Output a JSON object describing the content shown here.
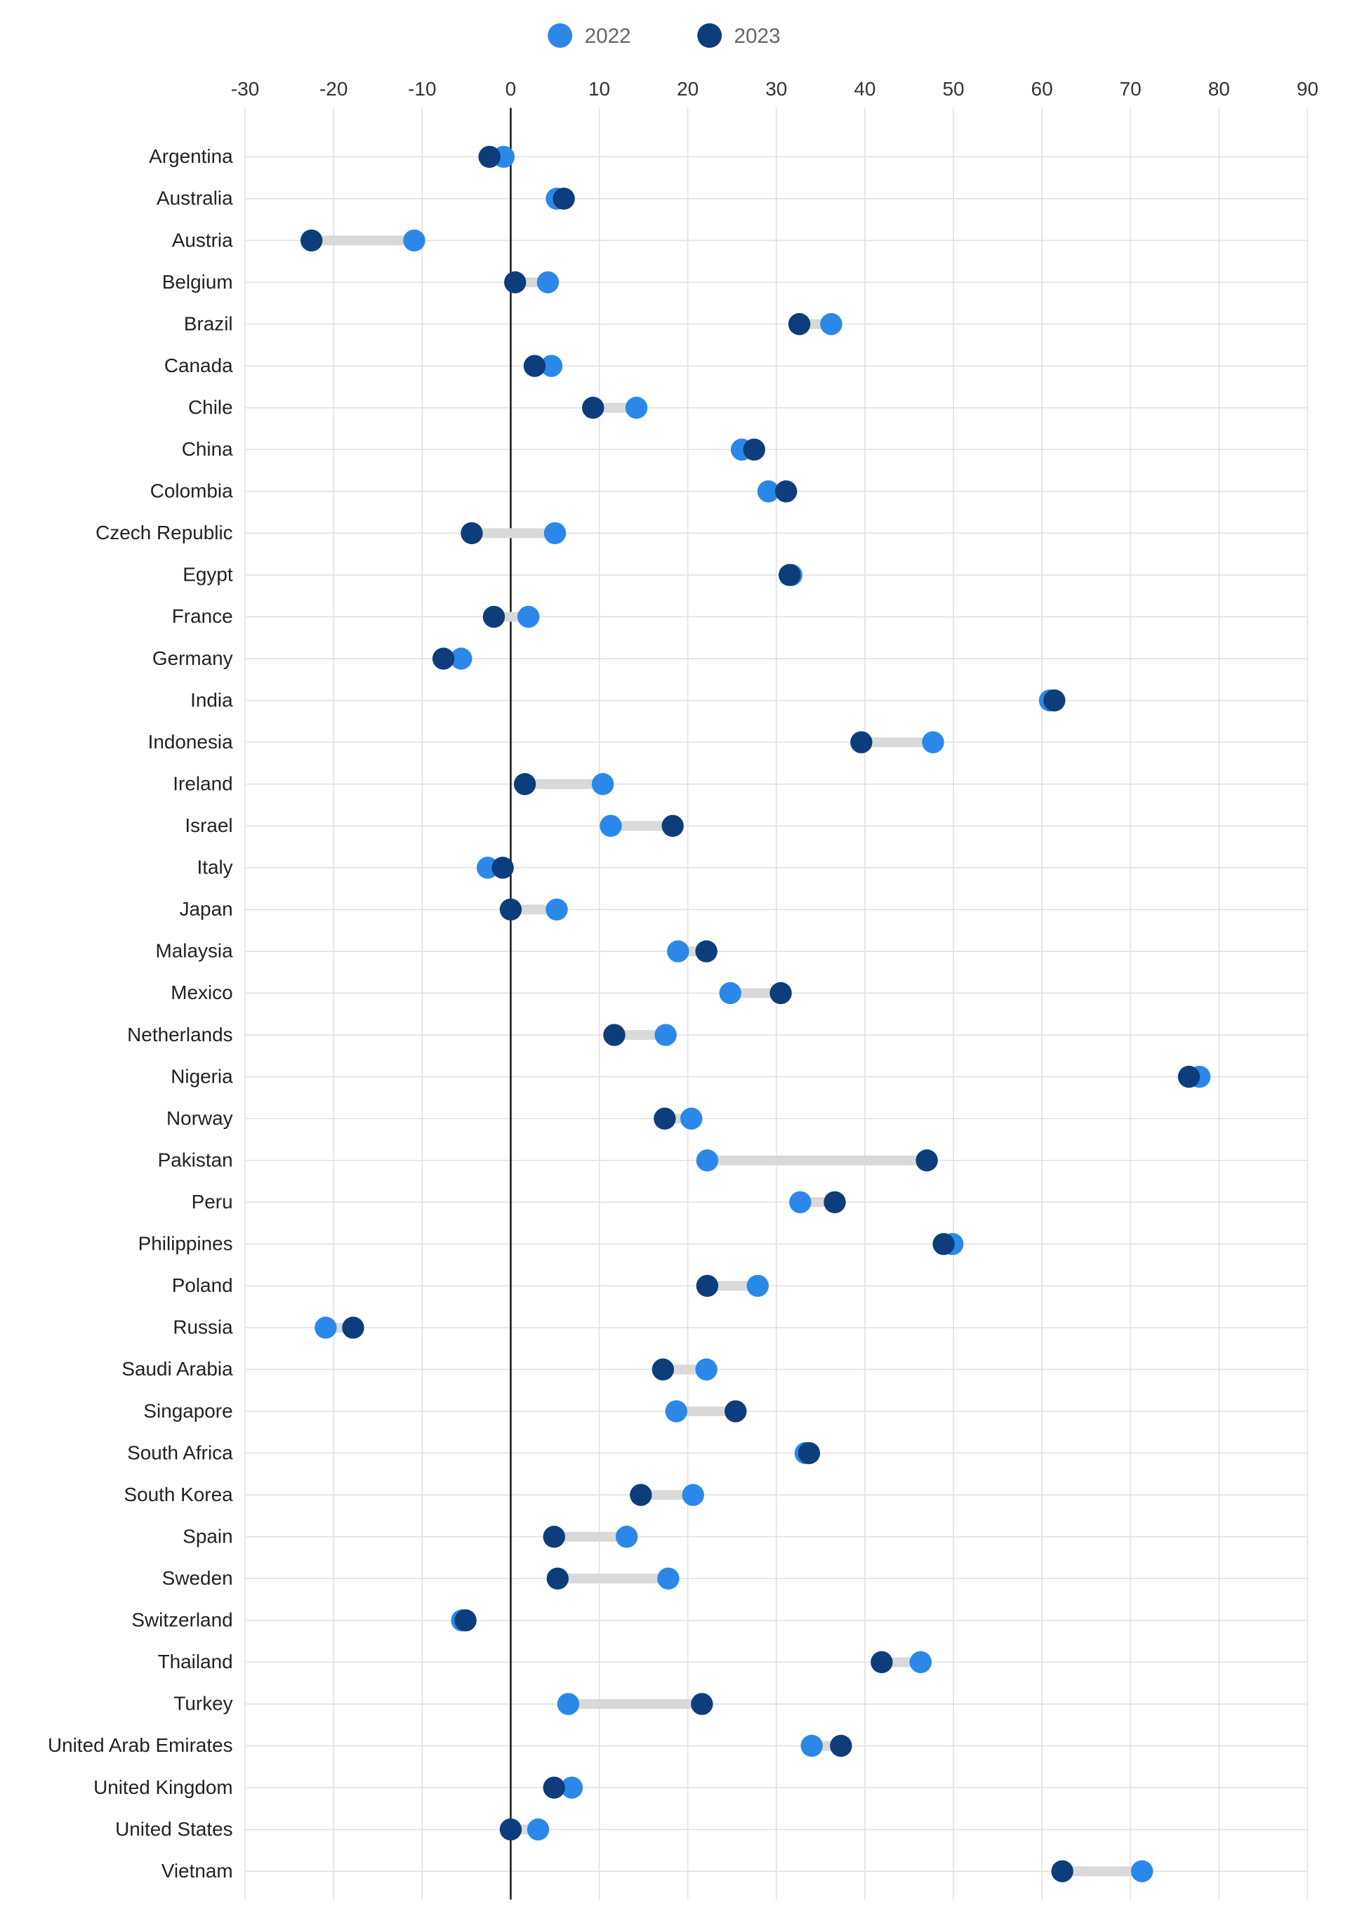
{
  "chart_data": {
    "type": "dumbbell",
    "title": "",
    "xlabel": "",
    "ylabel": "",
    "xlim": [
      -30,
      90
    ],
    "xticks": [
      -30,
      -20,
      -10,
      0,
      10,
      20,
      30,
      40,
      50,
      60,
      70,
      80,
      90
    ],
    "grid": true,
    "legend_position": "top-center",
    "series": [
      {
        "name": "2022",
        "color": "#2b88e8"
      },
      {
        "name": "2023",
        "color": "#0e3d7c"
      }
    ],
    "categories": [
      "Argentina",
      "Australia",
      "Austria",
      "Belgium",
      "Brazil",
      "Canada",
      "Chile",
      "China",
      "Colombia",
      "Czech Republic",
      "Egypt",
      "France",
      "Germany",
      "India",
      "Indonesia",
      "Ireland",
      "Israel",
      "Italy",
      "Japan",
      "Malaysia",
      "Mexico",
      "Netherlands",
      "Nigeria",
      "Norway",
      "Pakistan",
      "Peru",
      "Philippines",
      "Poland",
      "Russia",
      "Saudi Arabia",
      "Singapore",
      "South Africa",
      "South Korea",
      "Spain",
      "Sweden",
      "Switzerland",
      "Thailand",
      "Turkey",
      "United Arab Emirates",
      "United Kingdom",
      "United States",
      "Vietnam"
    ],
    "values_2022": [
      -0.8,
      5.2,
      -10.9,
      4.2,
      36.2,
      4.6,
      14.2,
      26.1,
      29.1,
      5.0,
      31.7,
      2.0,
      -5.6,
      60.9,
      47.7,
      10.4,
      11.3,
      -2.6,
      5.2,
      18.9,
      24.8,
      17.5,
      77.8,
      20.4,
      22.2,
      32.7,
      49.9,
      27.9,
      -20.9,
      22.1,
      18.7,
      33.3,
      20.6,
      13.1,
      17.8,
      -5.5,
      46.3,
      6.5,
      34.0,
      6.9,
      3.1,
      71.3
    ],
    "values_2023": [
      -2.4,
      6.0,
      -22.5,
      0.5,
      32.6,
      2.7,
      9.3,
      27.5,
      31.1,
      -4.4,
      31.5,
      -1.9,
      -7.6,
      61.4,
      39.6,
      1.6,
      18.3,
      -0.9,
      0.0,
      22.1,
      30.5,
      11.7,
      76.6,
      17.4,
      47.0,
      36.6,
      48.9,
      22.2,
      -17.8,
      17.2,
      25.4,
      33.7,
      14.7,
      4.9,
      5.3,
      -5.1,
      41.9,
      21.6,
      37.3,
      4.9,
      0.0,
      62.3
    ]
  }
}
